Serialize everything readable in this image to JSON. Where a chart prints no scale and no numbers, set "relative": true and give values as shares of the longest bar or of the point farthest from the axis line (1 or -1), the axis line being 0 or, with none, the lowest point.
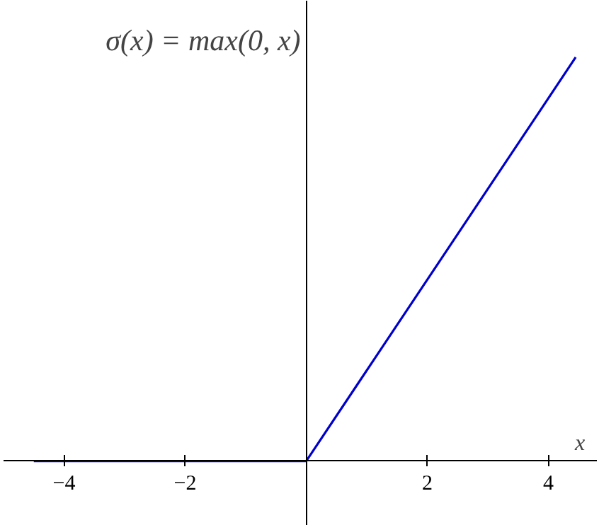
{
  "chart_data": {
    "type": "line",
    "relative": true,
    "ylabel": "σ(x) = max(0, x)",
    "xlabel": "x",
    "x": [
      -4.5,
      0,
      4.45
    ],
    "series": [
      {
        "color": "#0000cc",
        "values": [
          0,
          0,
          1
        ]
      }
    ],
    "xlim": [
      -5,
      4.8
    ],
    "xticks": [
      {
        "value": -4,
        "label": "−4"
      },
      {
        "value": -2,
        "label": "−2"
      },
      2,
      4
    ],
    "marker": "none",
    "line_style": "solid"
  }
}
